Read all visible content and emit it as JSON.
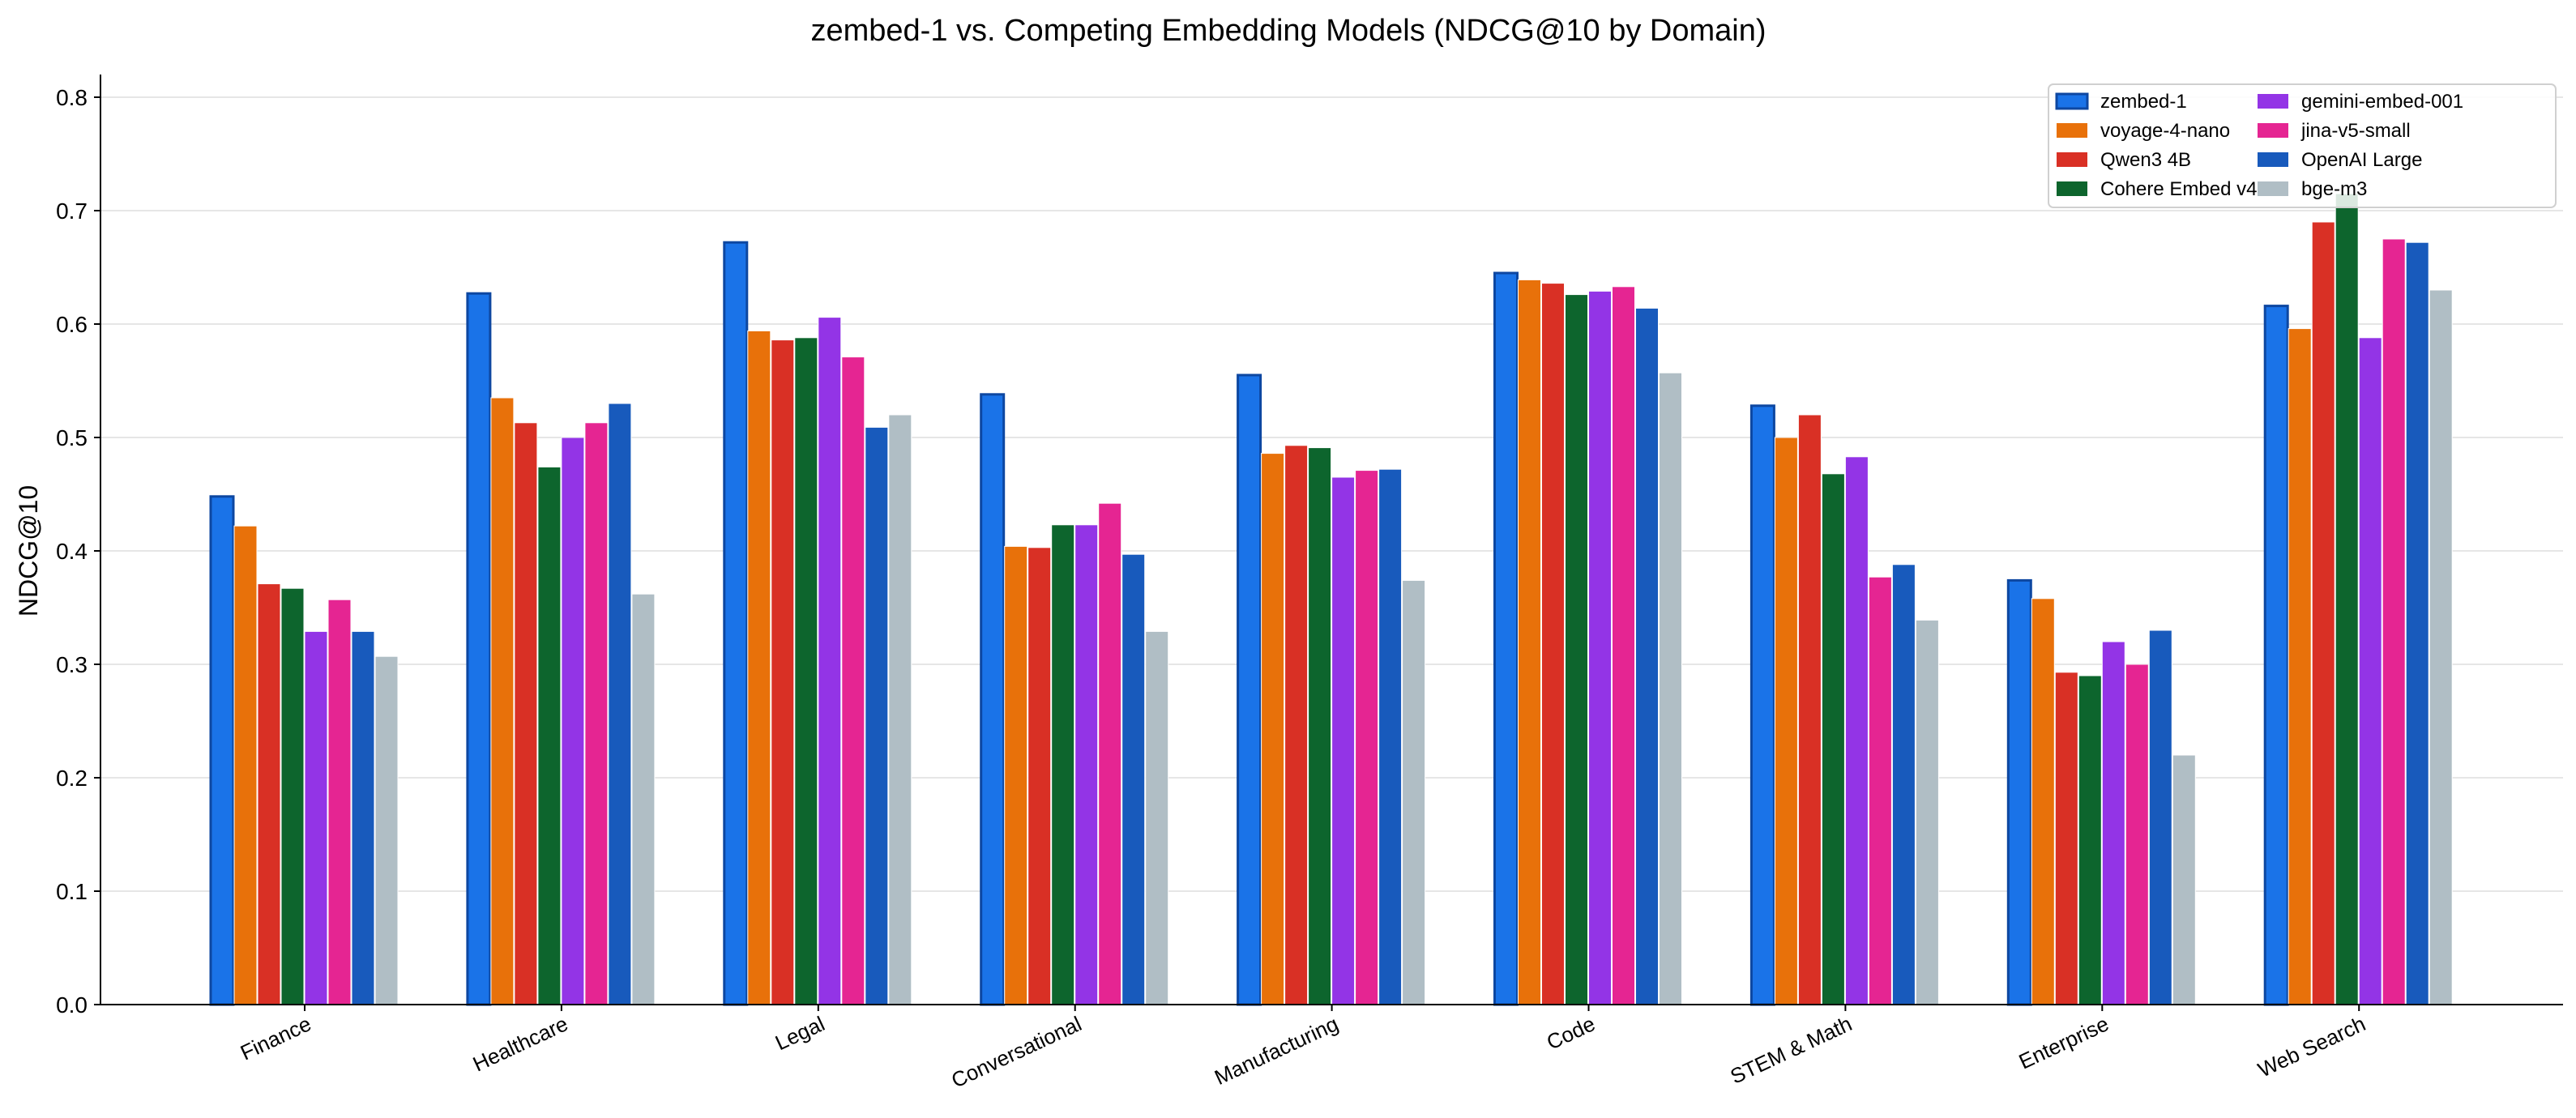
{
  "chart_data": {
    "type": "bar",
    "title": "zembed-1 vs. Competing Embedding Models (NDCG@10 by Domain)",
    "xlabel": "",
    "ylabel": "NDCG@10",
    "ylim": [
      0,
      0.82
    ],
    "yticks": [
      "0.0",
      "0.1",
      "0.2",
      "0.3",
      "0.4",
      "0.5",
      "0.6",
      "0.7",
      "0.8"
    ],
    "grid": "horizontal",
    "legend_position": "top-right",
    "categories": [
      "Finance",
      "Healthcare",
      "Legal",
      "Conversational",
      "Manufacturing",
      "Code",
      "STEM & Math",
      "Enterprise",
      "Web Search"
    ],
    "series": [
      {
        "name": "zembed-1",
        "color": "#1a73e8",
        "values": [
          0.448,
          0.627,
          0.672,
          0.538,
          0.555,
          0.645,
          0.528,
          0.374,
          0.616
        ]
      },
      {
        "name": "voyage-4-nano",
        "color": "#e8710a",
        "values": [
          0.422,
          0.535,
          0.594,
          0.404,
          0.486,
          0.639,
          0.5,
          0.358,
          0.596
        ]
      },
      {
        "name": "Qwen3 4B",
        "color": "#d93025",
        "values": [
          0.371,
          0.513,
          0.586,
          0.403,
          0.493,
          0.636,
          0.52,
          0.293,
          0.69
        ]
      },
      {
        "name": "Cohere Embed v4",
        "color": "#0d652d",
        "values": [
          0.367,
          0.474,
          0.588,
          0.423,
          0.491,
          0.626,
          0.468,
          0.29,
          0.715
        ]
      },
      {
        "name": "gemini-embed-001",
        "color": "#9334e6",
        "values": [
          0.329,
          0.5,
          0.606,
          0.423,
          0.465,
          0.629,
          0.483,
          0.32,
          0.588
        ]
      },
      {
        "name": "jina-v5-small",
        "color": "#e52592",
        "values": [
          0.357,
          0.513,
          0.571,
          0.442,
          0.471,
          0.633,
          0.377,
          0.3,
          0.675
        ]
      },
      {
        "name": "OpenAI Large",
        "color": "#185abc",
        "values": [
          0.329,
          0.53,
          0.509,
          0.397,
          0.472,
          0.614,
          0.388,
          0.33,
          0.672
        ]
      },
      {
        "name": "bge-m3",
        "color": "#b0bec5",
        "values": [
          0.307,
          0.362,
          0.52,
          0.329,
          0.374,
          0.557,
          0.339,
          0.22,
          0.63
        ]
      }
    ]
  }
}
